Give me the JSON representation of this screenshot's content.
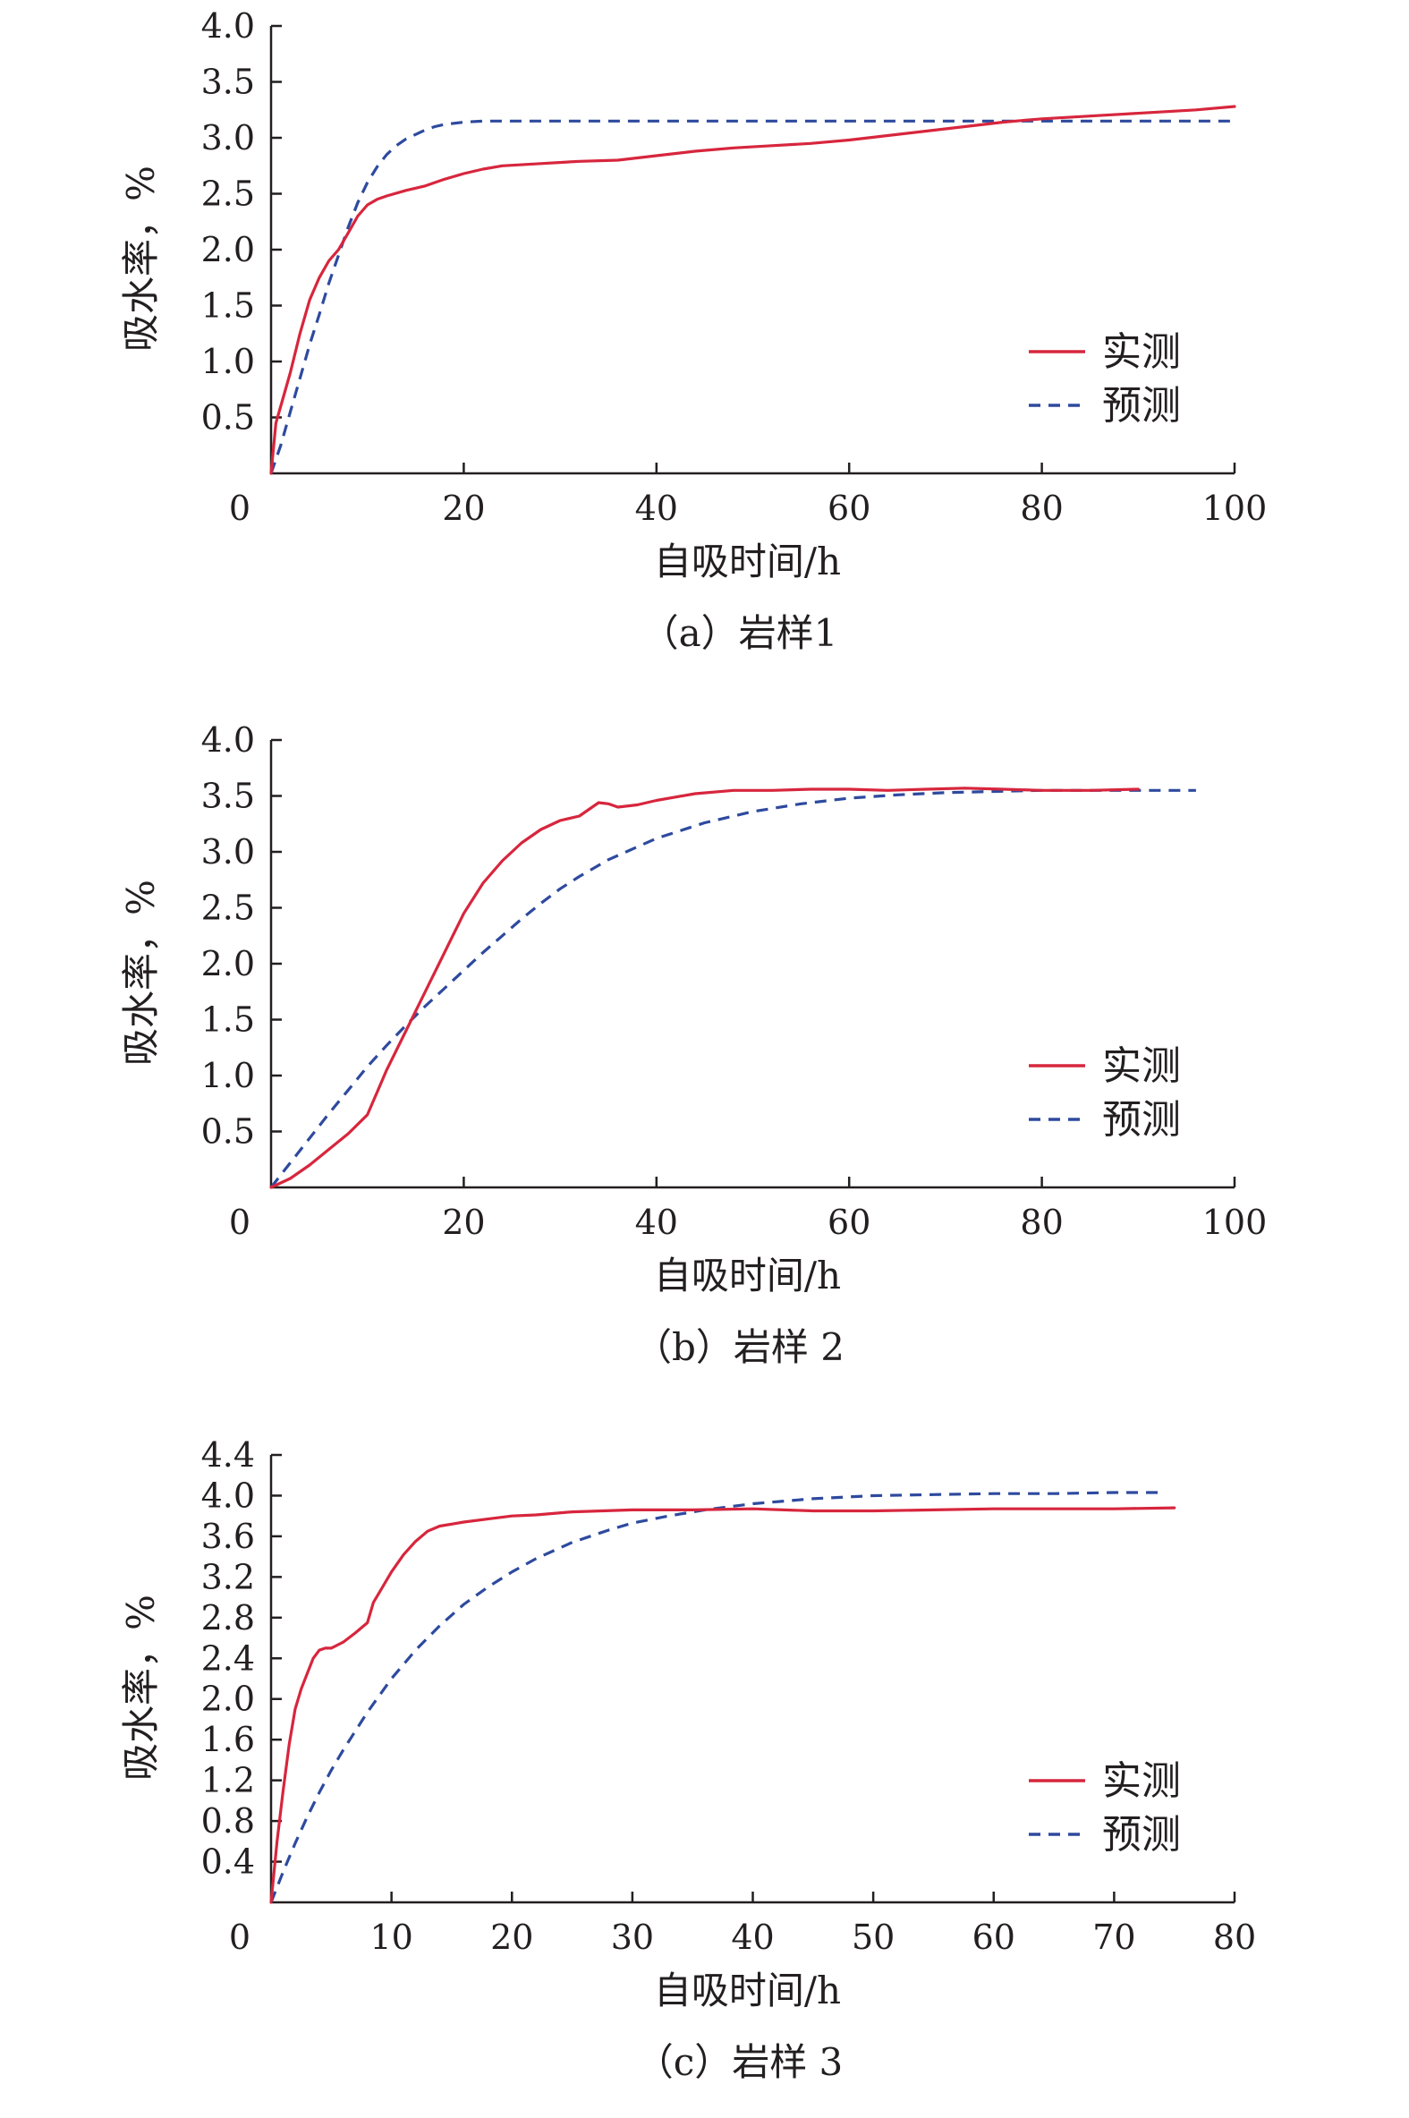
{
  "chart_data": [
    {
      "type": "line",
      "caption": "（a）岩样1",
      "xlabel": "自吸时间/h",
      "ylabel": "吸水率，%",
      "xlim": [
        0,
        100
      ],
      "ylim": [
        0,
        4.0
      ],
      "xticks": [
        "0",
        "20",
        "40",
        "60",
        "80",
        "100"
      ],
      "yticks": [
        "0.5",
        "1.0",
        "1.5",
        "2.0",
        "2.5",
        "3.0",
        "3.5",
        "4.0"
      ],
      "legend": {
        "position": "lower-right",
        "entries": [
          "实测",
          "预测"
        ]
      },
      "grid": false,
      "series": [
        {
          "name": "实测",
          "style": "solid",
          "color": "#d7263d",
          "x": [
            0,
            0.5,
            1,
            2,
            3,
            4,
            5,
            6,
            7,
            8,
            9,
            10,
            11,
            12,
            14,
            16,
            18,
            20,
            22,
            24,
            28,
            32,
            36,
            40,
            44,
            48,
            52,
            56,
            60,
            64,
            68,
            72,
            76,
            80,
            84,
            88,
            92,
            96,
            100
          ],
          "y": [
            0,
            0.45,
            0.6,
            0.9,
            1.25,
            1.55,
            1.75,
            1.9,
            2.0,
            2.15,
            2.3,
            2.4,
            2.45,
            2.48,
            2.53,
            2.57,
            2.63,
            2.68,
            2.72,
            2.75,
            2.77,
            2.79,
            2.8,
            2.84,
            2.88,
            2.91,
            2.93,
            2.95,
            2.98,
            3.02,
            3.06,
            3.1,
            3.14,
            3.17,
            3.19,
            3.21,
            3.23,
            3.25,
            3.28
          ]
        },
        {
          "name": "预测",
          "style": "dashed",
          "color": "#2e4a9e",
          "x": [
            0,
            1,
            2,
            3,
            4,
            5,
            6,
            7,
            8,
            9,
            10,
            11,
            12,
            13,
            14,
            15,
            16,
            17,
            18,
            20,
            22,
            25,
            30,
            40,
            50,
            60,
            70,
            80,
            90,
            100
          ],
          "y": [
            0,
            0.25,
            0.55,
            0.85,
            1.15,
            1.42,
            1.7,
            1.95,
            2.2,
            2.42,
            2.6,
            2.74,
            2.85,
            2.93,
            2.99,
            3.03,
            3.07,
            3.1,
            3.12,
            3.14,
            3.15,
            3.15,
            3.15,
            3.15,
            3.15,
            3.15,
            3.15,
            3.15,
            3.15,
            3.15
          ]
        }
      ]
    },
    {
      "type": "line",
      "caption": "（b）岩样 2",
      "xlabel": "自吸时间/h",
      "ylabel": "吸水率，%",
      "xlim": [
        0,
        100
      ],
      "ylim": [
        0,
        4.0
      ],
      "xticks": [
        "0",
        "20",
        "40",
        "60",
        "80",
        "100"
      ],
      "yticks": [
        "0.5",
        "1.0",
        "1.5",
        "2.0",
        "2.5",
        "3.0",
        "3.5",
        "4.0"
      ],
      "legend": {
        "position": "lower-right",
        "entries": [
          "实测",
          "预测"
        ]
      },
      "grid": false,
      "series": [
        {
          "name": "实测",
          "style": "solid",
          "color": "#d7263d",
          "x": [
            0,
            2,
            4,
            6,
            8,
            10,
            11,
            12,
            14,
            16,
            18,
            20,
            22,
            24,
            26,
            28,
            30,
            32,
            33,
            34,
            35,
            36,
            38,
            40,
            44,
            48,
            52,
            56,
            60,
            64,
            68,
            72,
            76,
            80,
            85,
            90
          ],
          "y": [
            0,
            0.08,
            0.2,
            0.34,
            0.48,
            0.65,
            0.85,
            1.05,
            1.4,
            1.75,
            2.1,
            2.45,
            2.72,
            2.92,
            3.08,
            3.2,
            3.28,
            3.32,
            3.38,
            3.44,
            3.43,
            3.4,
            3.42,
            3.46,
            3.52,
            3.55,
            3.55,
            3.56,
            3.56,
            3.55,
            3.56,
            3.57,
            3.56,
            3.55,
            3.55,
            3.56
          ]
        },
        {
          "name": "预测",
          "style": "dashed",
          "color": "#2e4a9e",
          "x": [
            0,
            2,
            4,
            6,
            8,
            10,
            12,
            14,
            16,
            18,
            20,
            22,
            24,
            26,
            28,
            30,
            32,
            35,
            40,
            45,
            50,
            55,
            60,
            65,
            70,
            75,
            80,
            85,
            90,
            96
          ],
          "y": [
            0,
            0.22,
            0.44,
            0.66,
            0.87,
            1.08,
            1.27,
            1.45,
            1.62,
            1.78,
            1.94,
            2.1,
            2.25,
            2.4,
            2.54,
            2.67,
            2.78,
            2.93,
            3.12,
            3.26,
            3.36,
            3.43,
            3.48,
            3.51,
            3.53,
            3.54,
            3.55,
            3.55,
            3.55,
            3.55
          ]
        }
      ]
    },
    {
      "type": "line",
      "caption": "（c）岩样 3",
      "xlabel": "自吸时间/h",
      "ylabel": "吸水率，%",
      "xlim": [
        0,
        80
      ],
      "ylim": [
        0,
        4.4
      ],
      "xticks": [
        "0",
        "10",
        "20",
        "30",
        "40",
        "50",
        "60",
        "70",
        "80"
      ],
      "yticks": [
        "0.4",
        "0.8",
        "1.2",
        "1.6",
        "2.0",
        "2.4",
        "2.8",
        "3.2",
        "3.6",
        "4.0",
        "4.4"
      ],
      "legend": {
        "position": "lower-right",
        "entries": [
          "实测",
          "预测"
        ]
      },
      "grid": false,
      "series": [
        {
          "name": "实测",
          "style": "solid",
          "color": "#d7263d",
          "x": [
            0,
            0.5,
            1,
            1.5,
            2,
            2.5,
            3,
            3.5,
            4,
            4.5,
            5,
            6,
            7,
            8,
            8.5,
            9,
            10,
            11,
            12,
            13,
            14,
            16,
            18,
            20,
            22,
            25,
            30,
            35,
            40,
            45,
            50,
            55,
            60,
            65,
            70,
            75
          ],
          "y": [
            0,
            0.6,
            1.1,
            1.55,
            1.9,
            2.1,
            2.25,
            2.4,
            2.48,
            2.5,
            2.5,
            2.56,
            2.65,
            2.75,
            2.95,
            3.05,
            3.25,
            3.42,
            3.55,
            3.65,
            3.7,
            3.74,
            3.77,
            3.8,
            3.81,
            3.84,
            3.86,
            3.86,
            3.87,
            3.85,
            3.85,
            3.86,
            3.87,
            3.87,
            3.87,
            3.88
          ]
        },
        {
          "name": "预测",
          "style": "dashed",
          "color": "#2e4a9e",
          "x": [
            0,
            1,
            2,
            3,
            4,
            5,
            6,
            8,
            10,
            12,
            14,
            16,
            18,
            20,
            22,
            25,
            28,
            30,
            33,
            36,
            40,
            45,
            50,
            55,
            60,
            65,
            70,
            74
          ],
          "y": [
            0,
            0.3,
            0.58,
            0.84,
            1.08,
            1.3,
            1.5,
            1.87,
            2.2,
            2.48,
            2.72,
            2.93,
            3.1,
            3.25,
            3.38,
            3.54,
            3.66,
            3.73,
            3.8,
            3.86,
            3.92,
            3.97,
            4.0,
            4.01,
            4.02,
            4.02,
            4.03,
            4.03
          ]
        }
      ]
    }
  ]
}
